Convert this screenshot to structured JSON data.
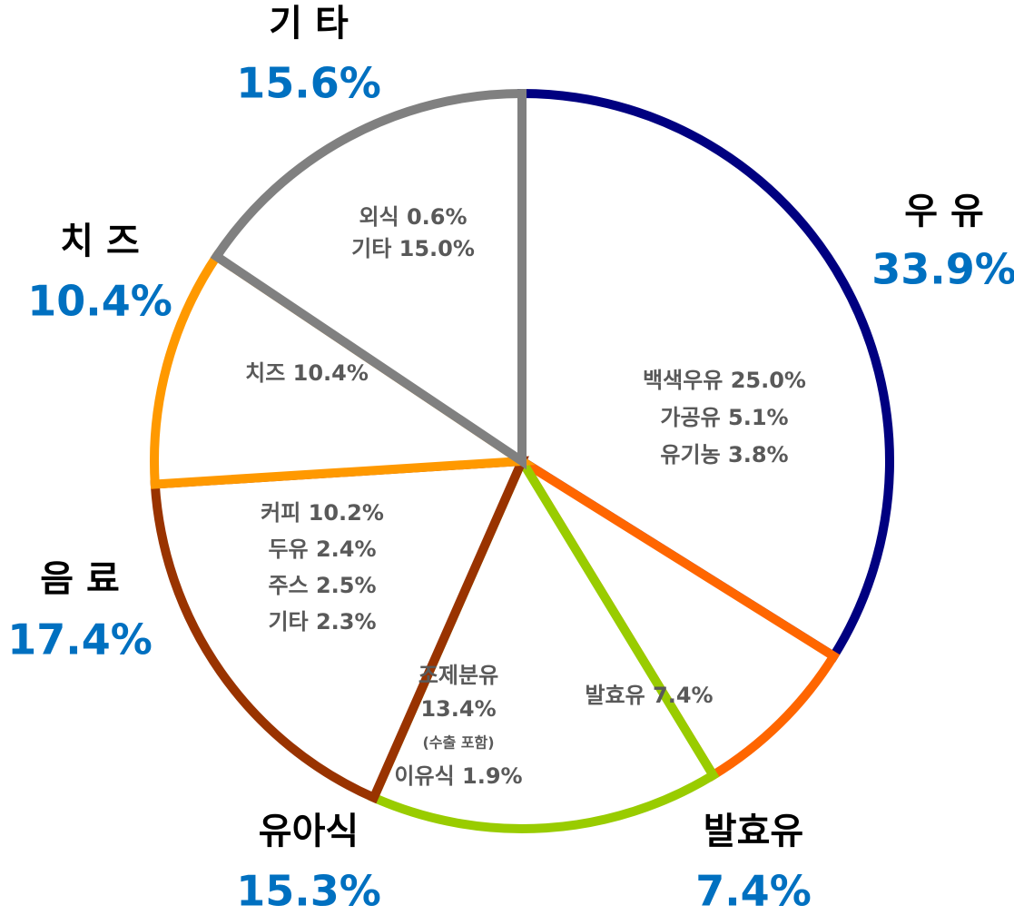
{
  "chart_data": {
    "type": "pie",
    "categories": [
      "우 유",
      "발효유",
      "유아식",
      "음 료",
      "치 즈",
      "기 타"
    ],
    "values": [
      33.9,
      7.4,
      15.3,
      17.4,
      10.4,
      15.6
    ],
    "value_labels": [
      "33.9%",
      "7.4%",
      "15.3%",
      "17.4%",
      "10.4%",
      "15.6%"
    ],
    "colors": [
      "#000080",
      "#ff6600",
      "#99cc00",
      "#993300",
      "#ff9900",
      "#808080"
    ],
    "details": [
      [
        {
          "text": "백색우유 25.0%"
        },
        {
          "text": "가공유 5.1%"
        },
        {
          "text": "유기농 3.8%"
        }
      ],
      [
        {
          "text": "발효유 7.4%"
        }
      ],
      [
        {
          "text": "조제분유"
        },
        {
          "text": "13.4%"
        },
        {
          "text": "(수출 포함)",
          "small": true
        },
        {
          "text": "이유식 1.9%"
        }
      ],
      [
        {
          "text": "커피 10.2%"
        },
        {
          "text": "두유 2.4%"
        },
        {
          "text": "주스 2.5%"
        },
        {
          "text": "기타 2.3%"
        }
      ],
      [
        {
          "text": "치즈 10.4%"
        }
      ],
      [
        {
          "text": "외식 0.6%"
        },
        {
          "text": "기타 15.0%"
        }
      ]
    ]
  }
}
